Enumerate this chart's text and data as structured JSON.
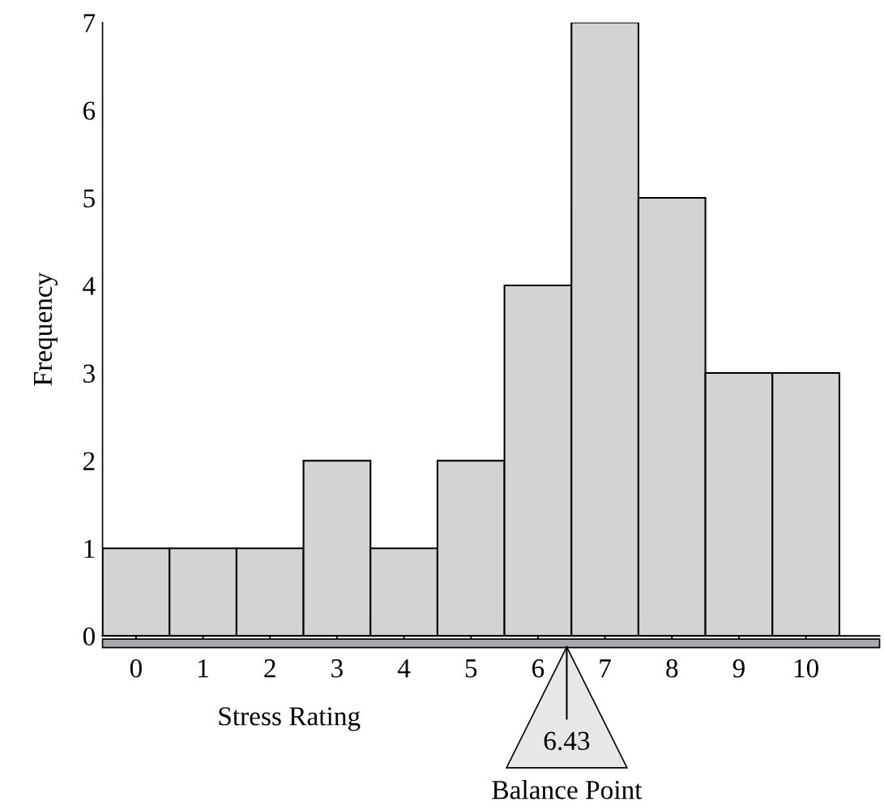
{
  "chart_data": {
    "type": "histogram",
    "xlabel": "Stress Rating",
    "ylabel": "Frequency",
    "bins": [
      -0.5,
      0.5,
      1.5,
      2.5,
      3.5,
      4.5,
      5.5,
      6.5,
      7.5,
      8.5,
      9.5,
      10.5
    ],
    "values": [
      1,
      1,
      1,
      2,
      1,
      2,
      4,
      7,
      5,
      3,
      3
    ],
    "color": "#d1d3d4",
    "xlim": [
      -0.5,
      11.1
    ],
    "ylim": [
      0,
      7
    ],
    "xticks": [
      0,
      1,
      2,
      3,
      4,
      5,
      6,
      7,
      8,
      9,
      10
    ],
    "yticks": [
      0,
      1,
      2,
      3,
      4,
      5,
      6,
      7
    ],
    "ref_lines": [
      {
        "axis": "x",
        "value": 6.43,
        "label": "6.43"
      }
    ],
    "annotations": [
      "Balance Point"
    ],
    "grid": false
  }
}
